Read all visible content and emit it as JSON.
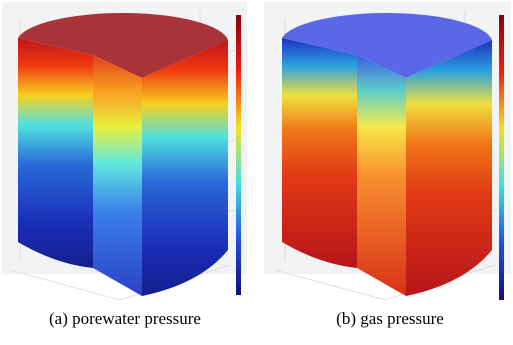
{
  "figure": {
    "panels": [
      {
        "caption": "(a) porewater pressure"
      },
      {
        "caption": "(b) gas pressure"
      }
    ]
  }
}
